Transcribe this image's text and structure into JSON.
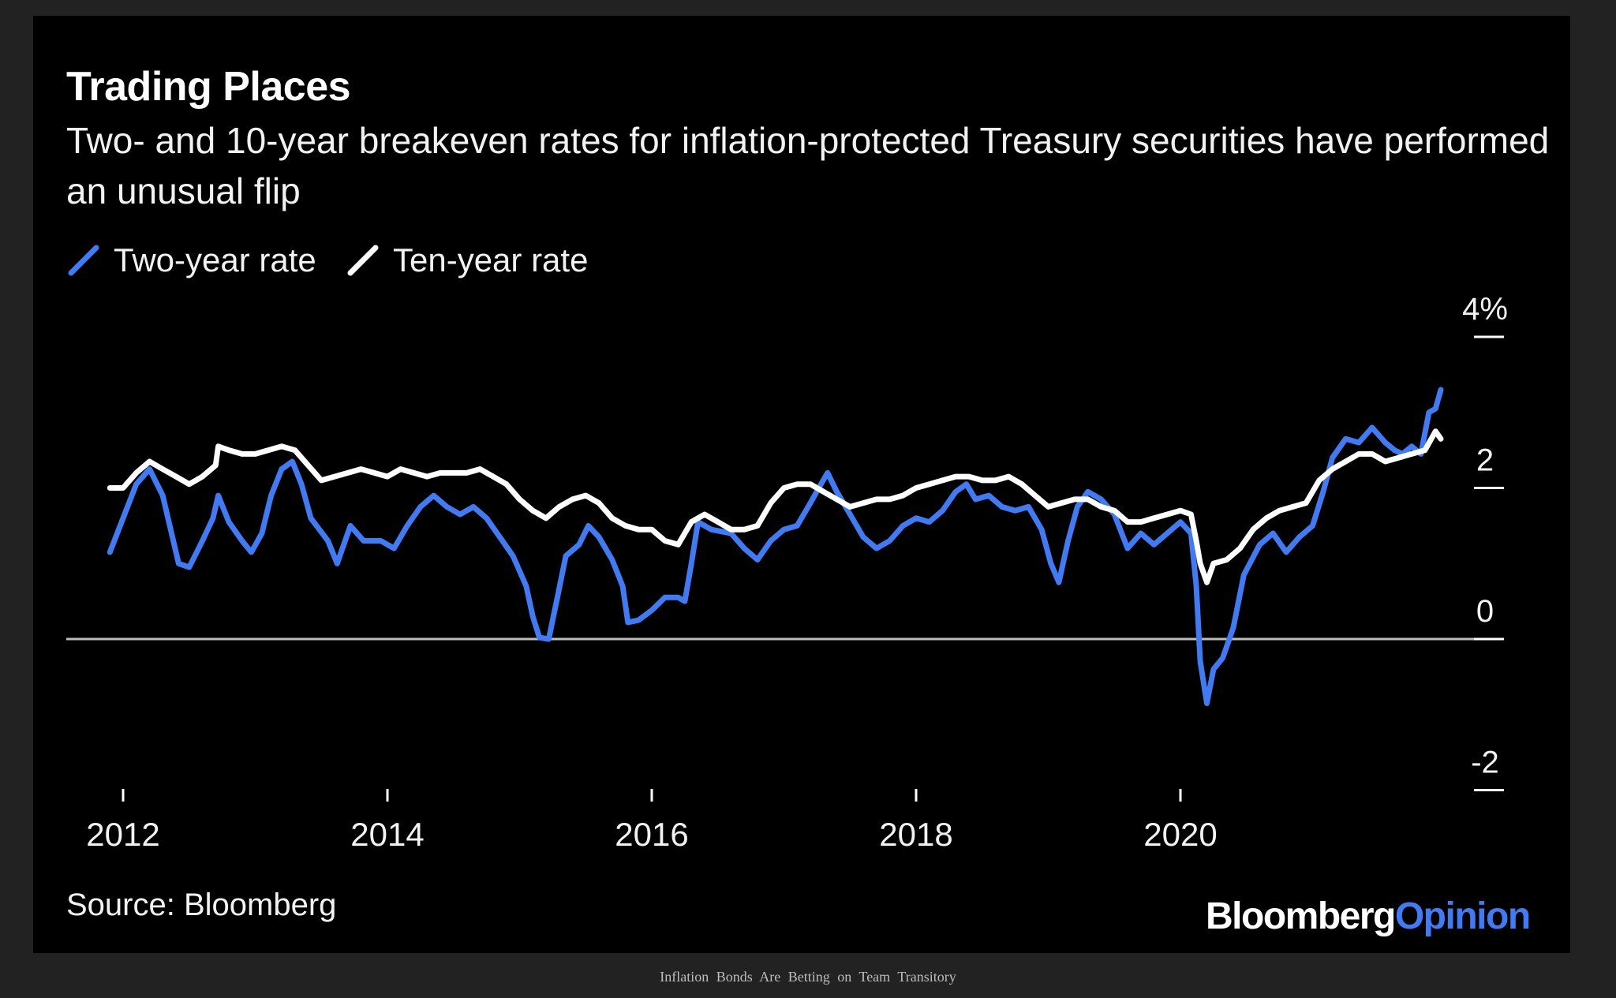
{
  "chart_data": {
    "type": "line",
    "title": "Trading Places",
    "subtitle": "Two- and 10-year breakeven rates for inflation-protected Treasury securities have performed an unusual flip",
    "xlabel": "",
    "ylabel": "",
    "xlim": [
      2011.9,
      2021.9
    ],
    "ylim": [
      -2,
      4
    ],
    "y_ticks": [
      "4%",
      "2",
      "0",
      "-2"
    ],
    "y_tick_values": [
      4,
      2,
      0,
      -2
    ],
    "x_ticks": [
      "2012",
      "2014",
      "2016",
      "2018",
      "2020"
    ],
    "x_tick_values": [
      2012,
      2014,
      2016,
      2018,
      2020
    ],
    "zero_line": true,
    "legend_position": "top-left",
    "series": [
      {
        "name": "Two-year rate",
        "color": "#3e7bf5",
        "points": [
          [
            2011.9,
            1.15
          ],
          [
            2012.0,
            1.6
          ],
          [
            2012.1,
            2.05
          ],
          [
            2012.2,
            2.25
          ],
          [
            2012.3,
            1.9
          ],
          [
            2012.42,
            1.0
          ],
          [
            2012.5,
            0.95
          ],
          [
            2012.6,
            1.3
          ],
          [
            2012.68,
            1.6
          ],
          [
            2012.72,
            1.9
          ],
          [
            2012.8,
            1.55
          ],
          [
            2012.9,
            1.3
          ],
          [
            2012.97,
            1.15
          ],
          [
            2013.05,
            1.4
          ],
          [
            2013.12,
            1.9
          ],
          [
            2013.2,
            2.25
          ],
          [
            2013.28,
            2.35
          ],
          [
            2013.35,
            2.05
          ],
          [
            2013.42,
            1.6
          ],
          [
            2013.55,
            1.3
          ],
          [
            2013.62,
            1.0
          ],
          [
            2013.72,
            1.5
          ],
          [
            2013.82,
            1.3
          ],
          [
            2013.95,
            1.3
          ],
          [
            2014.05,
            1.2
          ],
          [
            2014.15,
            1.5
          ],
          [
            2014.25,
            1.75
          ],
          [
            2014.35,
            1.9
          ],
          [
            2014.45,
            1.75
          ],
          [
            2014.55,
            1.65
          ],
          [
            2014.65,
            1.75
          ],
          [
            2014.75,
            1.6
          ],
          [
            2014.85,
            1.35
          ],
          [
            2014.95,
            1.1
          ],
          [
            2015.05,
            0.7
          ],
          [
            2015.1,
            0.3
          ],
          [
            2015.15,
            0.02
          ],
          [
            2015.22,
            0.0
          ],
          [
            2015.28,
            0.5
          ],
          [
            2015.35,
            1.1
          ],
          [
            2015.45,
            1.25
          ],
          [
            2015.52,
            1.5
          ],
          [
            2015.6,
            1.35
          ],
          [
            2015.7,
            1.05
          ],
          [
            2015.78,
            0.7
          ],
          [
            2015.82,
            0.22
          ],
          [
            2015.9,
            0.25
          ],
          [
            2016.0,
            0.38
          ],
          [
            2016.1,
            0.55
          ],
          [
            2016.2,
            0.55
          ],
          [
            2016.25,
            0.5
          ],
          [
            2016.3,
            1.0
          ],
          [
            2016.35,
            1.55
          ],
          [
            2016.45,
            1.45
          ],
          [
            2016.6,
            1.4
          ],
          [
            2016.7,
            1.2
          ],
          [
            2016.8,
            1.05
          ],
          [
            2016.9,
            1.3
          ],
          [
            2017.0,
            1.45
          ],
          [
            2017.1,
            1.5
          ],
          [
            2017.2,
            1.8
          ],
          [
            2017.28,
            2.05
          ],
          [
            2017.33,
            2.2
          ],
          [
            2017.4,
            1.95
          ],
          [
            2017.5,
            1.65
          ],
          [
            2017.6,
            1.35
          ],
          [
            2017.7,
            1.2
          ],
          [
            2017.8,
            1.3
          ],
          [
            2017.9,
            1.5
          ],
          [
            2018.0,
            1.6
          ],
          [
            2018.1,
            1.55
          ],
          [
            2018.2,
            1.7
          ],
          [
            2018.3,
            1.95
          ],
          [
            2018.38,
            2.05
          ],
          [
            2018.45,
            1.85
          ],
          [
            2018.55,
            1.9
          ],
          [
            2018.65,
            1.75
          ],
          [
            2018.75,
            1.7
          ],
          [
            2018.85,
            1.75
          ],
          [
            2018.95,
            1.45
          ],
          [
            2019.02,
            1.0
          ],
          [
            2019.08,
            0.75
          ],
          [
            2019.15,
            1.3
          ],
          [
            2019.22,
            1.75
          ],
          [
            2019.3,
            1.95
          ],
          [
            2019.4,
            1.85
          ],
          [
            2019.5,
            1.65
          ],
          [
            2019.6,
            1.2
          ],
          [
            2019.7,
            1.4
          ],
          [
            2019.8,
            1.25
          ],
          [
            2019.9,
            1.4
          ],
          [
            2020.0,
            1.55
          ],
          [
            2020.08,
            1.4
          ],
          [
            2020.12,
            0.7
          ],
          [
            2020.15,
            -0.3
          ],
          [
            2020.2,
            -0.85
          ],
          [
            2020.25,
            -0.4
          ],
          [
            2020.32,
            -0.25
          ],
          [
            2020.4,
            0.15
          ],
          [
            2020.48,
            0.85
          ],
          [
            2020.6,
            1.25
          ],
          [
            2020.7,
            1.4
          ],
          [
            2020.8,
            1.15
          ],
          [
            2020.9,
            1.35
          ],
          [
            2021.0,
            1.5
          ],
          [
            2021.08,
            1.95
          ],
          [
            2021.15,
            2.4
          ],
          [
            2021.25,
            2.65
          ],
          [
            2021.35,
            2.6
          ],
          [
            2021.45,
            2.8
          ],
          [
            2021.55,
            2.6
          ],
          [
            2021.62,
            2.5
          ],
          [
            2021.68,
            2.45
          ],
          [
            2021.75,
            2.55
          ],
          [
            2021.82,
            2.45
          ],
          [
            2021.88,
            3.0
          ],
          [
            2021.93,
            3.05
          ],
          [
            2021.97,
            3.3
          ]
        ]
      },
      {
        "name": "Ten-year rate",
        "color": "#ffffff",
        "points": [
          [
            2011.9,
            2.0
          ],
          [
            2012.0,
            2.0
          ],
          [
            2012.1,
            2.2
          ],
          [
            2012.2,
            2.35
          ],
          [
            2012.3,
            2.25
          ],
          [
            2012.4,
            2.15
          ],
          [
            2012.5,
            2.05
          ],
          [
            2012.6,
            2.15
          ],
          [
            2012.7,
            2.3
          ],
          [
            2012.72,
            2.55
          ],
          [
            2012.8,
            2.5
          ],
          [
            2012.9,
            2.45
          ],
          [
            2013.0,
            2.45
          ],
          [
            2013.1,
            2.5
          ],
          [
            2013.2,
            2.55
          ],
          [
            2013.3,
            2.5
          ],
          [
            2013.4,
            2.3
          ],
          [
            2013.5,
            2.1
          ],
          [
            2013.6,
            2.15
          ],
          [
            2013.7,
            2.2
          ],
          [
            2013.8,
            2.25
          ],
          [
            2013.9,
            2.2
          ],
          [
            2014.0,
            2.15
          ],
          [
            2014.1,
            2.25
          ],
          [
            2014.2,
            2.2
          ],
          [
            2014.3,
            2.15
          ],
          [
            2014.4,
            2.2
          ],
          [
            2014.5,
            2.2
          ],
          [
            2014.6,
            2.2
          ],
          [
            2014.7,
            2.25
          ],
          [
            2014.8,
            2.15
          ],
          [
            2014.9,
            2.05
          ],
          [
            2015.0,
            1.85
          ],
          [
            2015.1,
            1.7
          ],
          [
            2015.2,
            1.6
          ],
          [
            2015.3,
            1.75
          ],
          [
            2015.4,
            1.85
          ],
          [
            2015.5,
            1.9
          ],
          [
            2015.6,
            1.8
          ],
          [
            2015.7,
            1.6
          ],
          [
            2015.8,
            1.5
          ],
          [
            2015.9,
            1.45
          ],
          [
            2016.0,
            1.45
          ],
          [
            2016.1,
            1.3
          ],
          [
            2016.2,
            1.25
          ],
          [
            2016.3,
            1.55
          ],
          [
            2016.4,
            1.65
          ],
          [
            2016.5,
            1.55
          ],
          [
            2016.6,
            1.45
          ],
          [
            2016.7,
            1.45
          ],
          [
            2016.8,
            1.5
          ],
          [
            2016.9,
            1.8
          ],
          [
            2017.0,
            2.0
          ],
          [
            2017.1,
            2.05
          ],
          [
            2017.2,
            2.05
          ],
          [
            2017.3,
            1.95
          ],
          [
            2017.4,
            1.85
          ],
          [
            2017.5,
            1.75
          ],
          [
            2017.6,
            1.8
          ],
          [
            2017.7,
            1.85
          ],
          [
            2017.8,
            1.85
          ],
          [
            2017.9,
            1.9
          ],
          [
            2018.0,
            2.0
          ],
          [
            2018.1,
            2.05
          ],
          [
            2018.2,
            2.1
          ],
          [
            2018.3,
            2.15
          ],
          [
            2018.4,
            2.15
          ],
          [
            2018.5,
            2.1
          ],
          [
            2018.6,
            2.1
          ],
          [
            2018.7,
            2.15
          ],
          [
            2018.8,
            2.05
          ],
          [
            2018.9,
            1.9
          ],
          [
            2019.0,
            1.75
          ],
          [
            2019.1,
            1.8
          ],
          [
            2019.2,
            1.85
          ],
          [
            2019.3,
            1.85
          ],
          [
            2019.4,
            1.75
          ],
          [
            2019.5,
            1.7
          ],
          [
            2019.6,
            1.55
          ],
          [
            2019.7,
            1.55
          ],
          [
            2019.8,
            1.6
          ],
          [
            2019.9,
            1.65
          ],
          [
            2020.0,
            1.7
          ],
          [
            2020.08,
            1.65
          ],
          [
            2020.12,
            1.3
          ],
          [
            2020.15,
            1.0
          ],
          [
            2020.2,
            0.75
          ],
          [
            2020.25,
            1.0
          ],
          [
            2020.35,
            1.05
          ],
          [
            2020.45,
            1.2
          ],
          [
            2020.55,
            1.45
          ],
          [
            2020.65,
            1.6
          ],
          [
            2020.75,
            1.7
          ],
          [
            2020.85,
            1.75
          ],
          [
            2020.95,
            1.8
          ],
          [
            2021.05,
            2.1
          ],
          [
            2021.15,
            2.25
          ],
          [
            2021.25,
            2.35
          ],
          [
            2021.35,
            2.45
          ],
          [
            2021.45,
            2.45
          ],
          [
            2021.55,
            2.35
          ],
          [
            2021.65,
            2.4
          ],
          [
            2021.75,
            2.45
          ],
          [
            2021.85,
            2.5
          ],
          [
            2021.93,
            2.75
          ],
          [
            2021.97,
            2.65
          ]
        ]
      }
    ]
  },
  "source": "Source: Bloomberg",
  "brand": {
    "part1": "Bloomberg",
    "part2": "Opinion"
  },
  "caption": "Inflation Bonds Are Betting on Team Transitory"
}
